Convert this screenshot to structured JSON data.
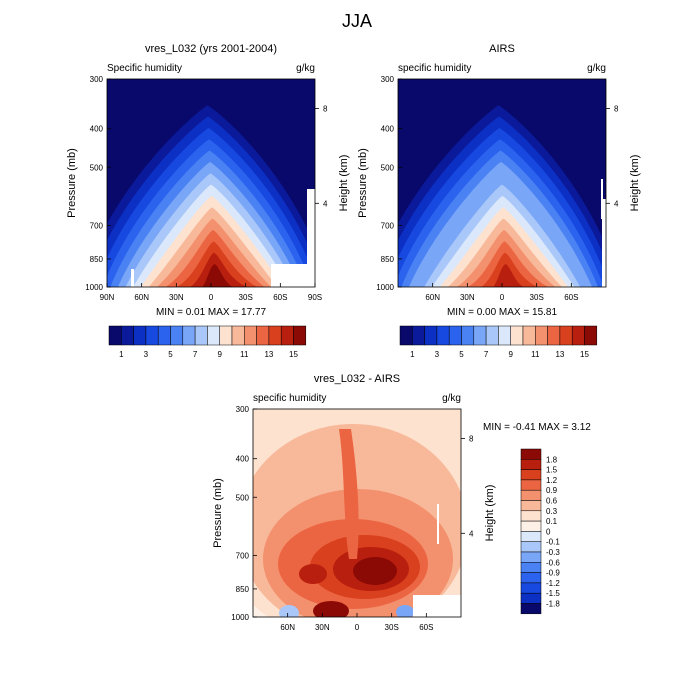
{
  "page_title": "JJA",
  "chart_data": [
    {
      "type": "heatmap",
      "title": "vres_L032 (yrs 2001-2004)",
      "subtitle_left": "Specific humidity",
      "units": "g/kg",
      "ylabel": "Pressure (mb)",
      "ylabel_right": "Height (km)",
      "y_ticks": [
        "300",
        "400",
        "500",
        "700",
        "850",
        "1000"
      ],
      "y_right_ticks": [
        "8",
        "4"
      ],
      "x_ticks": [
        "90N",
        "60N",
        "30N",
        "0",
        "30S",
        "60S",
        "90S"
      ],
      "min_max_label": "MIN =  0.01   MAX =  17.77",
      "min": 0.01,
      "max": 17.77,
      "colorbar_labels": [
        "1",
        "3",
        "5",
        "7",
        "9",
        "11",
        "13",
        "15"
      ]
    },
    {
      "type": "heatmap",
      "title": "AIRS",
      "subtitle_left": "specific humidity",
      "units": "g/kg",
      "ylabel": "Pressure (mb)",
      "ylabel_right": "Height (km)",
      "y_ticks": [
        "300",
        "400",
        "500",
        "700",
        "850",
        "1000"
      ],
      "y_right_ticks": [
        "8",
        "4"
      ],
      "x_ticks": [
        "60N",
        "30N",
        "0",
        "30S",
        "60S"
      ],
      "min_max_label": "MIN =  0.00   MAX =  15.81",
      "min": 0.0,
      "max": 15.81,
      "colorbar_labels": [
        "1",
        "3",
        "5",
        "7",
        "9",
        "11",
        "13",
        "15"
      ]
    },
    {
      "type": "heatmap",
      "title": "vres_L032 - AIRS",
      "subtitle_left": "specific humidity",
      "units": "g/kg",
      "ylabel": "Pressure (mb)",
      "ylabel_right": "Height (km)",
      "y_ticks": [
        "300",
        "400",
        "500",
        "700",
        "850",
        "1000"
      ],
      "y_right_ticks": [
        "8",
        "4"
      ],
      "x_ticks": [
        "60N",
        "30N",
        "0",
        "30S",
        "60S"
      ],
      "min_max_label": "MIN = -0.41  MAX =  3.12",
      "min": -0.41,
      "max": 3.12,
      "colorbar_labels": [
        "1.8",
        "1.5",
        "1.2",
        "0.9",
        "0.6",
        "0.3",
        "0.1",
        "0",
        "-0.1",
        "-0.3",
        "-0.6",
        "-0.9",
        "-1.2",
        "-1.5",
        "-1.8"
      ]
    }
  ],
  "palette": {
    "abs": [
      "#08096b",
      "#0a1a9b",
      "#0c2fc4",
      "#1748e0",
      "#2b63ee",
      "#4a82f4",
      "#7aa6f7",
      "#a9c8f9",
      "#dbe8fb",
      "#fde2cf",
      "#f8b99a",
      "#f3906d",
      "#ec6542",
      "#d9401e",
      "#b91f0e",
      "#8b0a06"
    ],
    "diff_desc": [
      "#8b0a06",
      "#b91f0e",
      "#d9401e",
      "#ec6542",
      "#f3906d",
      "#f8b99a",
      "#fde2cf",
      "#fdf0e6",
      "#dbe8fb",
      "#a9c8f9",
      "#7aa6f7",
      "#4a82f4",
      "#2b63ee",
      "#1748e0",
      "#0c2fc4",
      "#08096b"
    ]
  }
}
